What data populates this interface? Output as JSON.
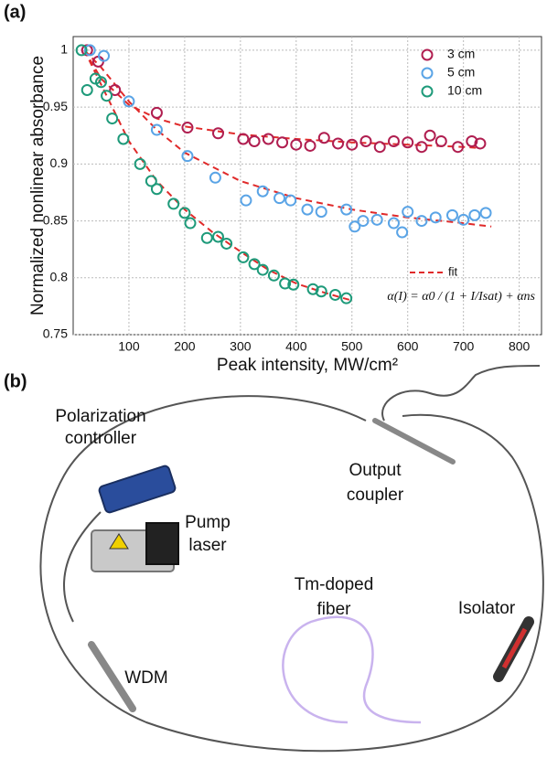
{
  "panels": [
    "(a)",
    "(b)"
  ],
  "chart_data": {
    "type": "scatter",
    "xlabel": "Peak intensity, MW/cm²",
    "ylabel": "Normalized nonlinear absorbance",
    "xlim": [
      0,
      840
    ],
    "ylim": [
      0.75,
      1.012
    ],
    "xticks": [
      100,
      200,
      300,
      400,
      500,
      600,
      700,
      800
    ],
    "yticks": [
      0.75,
      0.8,
      0.85,
      0.9,
      0.95,
      1
    ],
    "grid": true,
    "legend": "upper right",
    "series": [
      {
        "name": "3 cm",
        "color": "#b01e50",
        "x": [
          25,
          45,
          75,
          150,
          205,
          260,
          305,
          325,
          350,
          375,
          400,
          425,
          450,
          475,
          500,
          525,
          550,
          575,
          600,
          625,
          640,
          660,
          690,
          715,
          730
        ],
        "values": [
          1.0,
          0.99,
          0.965,
          0.945,
          0.932,
          0.927,
          0.922,
          0.92,
          0.922,
          0.919,
          0.917,
          0.916,
          0.923,
          0.918,
          0.917,
          0.92,
          0.915,
          0.92,
          0.919,
          0.915,
          0.925,
          0.92,
          0.915,
          0.92,
          0.918
        ]
      },
      {
        "name": "5 cm",
        "color": "#5aa4e6",
        "x": [
          30,
          55,
          100,
          150,
          205,
          255,
          310,
          340,
          370,
          390,
          420,
          445,
          490,
          505,
          520,
          545,
          575,
          590,
          600,
          625,
          650,
          680,
          700,
          720,
          740
        ],
        "values": [
          1.0,
          0.995,
          0.955,
          0.93,
          0.907,
          0.888,
          0.868,
          0.876,
          0.87,
          0.868,
          0.86,
          0.858,
          0.86,
          0.845,
          0.85,
          0.851,
          0.848,
          0.84,
          0.858,
          0.85,
          0.853,
          0.855,
          0.851,
          0.855,
          0.857
        ]
      },
      {
        "name": "10 cm",
        "color": "#1e9a7a",
        "x": [
          15,
          25,
          40,
          50,
          60,
          70,
          90,
          120,
          140,
          150,
          180,
          200,
          210,
          240,
          260,
          275,
          305,
          325,
          340,
          360,
          380,
          395,
          430,
          445,
          470,
          490
        ],
        "values": [
          1.0,
          0.965,
          0.975,
          0.972,
          0.96,
          0.94,
          0.922,
          0.9,
          0.885,
          0.878,
          0.865,
          0.857,
          0.848,
          0.835,
          0.836,
          0.83,
          0.818,
          0.812,
          0.807,
          0.802,
          0.795,
          0.794,
          0.79,
          0.788,
          0.785,
          0.782
        ]
      }
    ],
    "fit": {
      "name": "fit",
      "color": "#e02a2a",
      "curves": [
        {
          "x": [
            20,
            50,
            100,
            150,
            200,
            300,
            400,
            500,
            600,
            700,
            730
          ],
          "values": [
            1.0,
            0.975,
            0.952,
            0.94,
            0.933,
            0.926,
            0.922,
            0.919,
            0.917,
            0.915,
            0.914
          ]
        },
        {
          "x": [
            20,
            50,
            100,
            150,
            200,
            300,
            400,
            500,
            600,
            700,
            750
          ],
          "values": [
            1.0,
            0.985,
            0.955,
            0.93,
            0.91,
            0.885,
            0.87,
            0.86,
            0.853,
            0.848,
            0.845
          ]
        },
        {
          "x": [
            20,
            50,
            100,
            150,
            200,
            250,
            300,
            350,
            400,
            450,
            500
          ],
          "values": [
            1.0,
            0.97,
            0.92,
            0.885,
            0.86,
            0.84,
            0.823,
            0.807,
            0.795,
            0.787,
            0.78
          ]
        }
      ]
    },
    "formula": "α(I) = α0 / (1 + I/Isat) + αns"
  },
  "diagram": {
    "polarization_controller": [
      "Polarization",
      "controller"
    ],
    "pump_laser": [
      "Pump",
      "laser"
    ],
    "output_coupler": [
      "Output",
      "coupler"
    ],
    "tm_fiber": [
      "Tm-doped",
      "fiber"
    ],
    "isolator": "Isolator",
    "wdm": "WDM"
  }
}
